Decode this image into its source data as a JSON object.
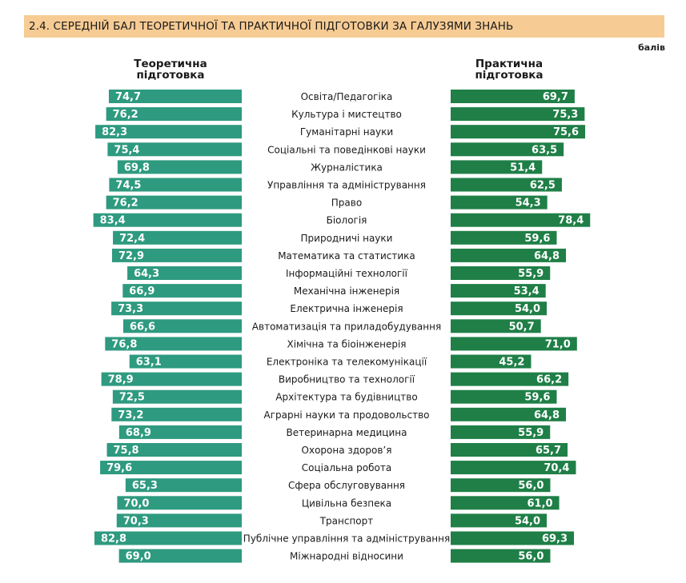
{
  "header": {
    "title": "2.4. СЕРЕДНІЙ БАЛ ТЕОРЕТИЧНОЇ ТА ПРАКТИЧНОЇ ПІДГОТОВКИ ЗА ГАЛУЗЯМИ ЗНАНЬ",
    "unit": "балів"
  },
  "columns": {
    "theory_line1": "Теоретична",
    "theory_line2": "підготовка",
    "practice_line1": "Практична",
    "practice_line2": "підготовка"
  },
  "colors": {
    "theory": "#2e9a7f",
    "practice": "#1f7f47",
    "title_bg": "#f7cc94"
  },
  "chart_data": {
    "type": "bar",
    "categories": [
      "Освіта/Педагогіка",
      "Культура і мистецтво",
      "Гуманітарні науки",
      "Соціальні та поведінкові науки",
      "Журналістика",
      "Управління та адміністрування",
      "Право",
      "Біологія",
      "Природничі науки",
      "Математика та статистика",
      "Інформаційні технології",
      "Механічна інженерія",
      "Електрична інженерія",
      "Автоматизація та приладобудування",
      "Хімічна та біоінженерія",
      "Електроніка та телекомунікації",
      "Виробництво та технології",
      "Архітектура та будівництво",
      "Аграрні науки та продовольство",
      "Ветеринарна медицина",
      "Охорона здоров’я",
      "Соціальна робота",
      "Сфера обслуговування",
      "Цивільна безпека",
      "Транспорт",
      "Публічне управління та адміністрування",
      "Міжнародні відносини"
    ],
    "series": [
      {
        "name": "Теоретична підготовка",
        "values": [
          74.7,
          76.2,
          82.3,
          75.4,
          69.8,
          74.5,
          76.2,
          83.4,
          72.4,
          72.9,
          64.3,
          66.9,
          73.3,
          66.6,
          76.8,
          63.1,
          78.9,
          72.5,
          73.2,
          68.9,
          75.8,
          79.6,
          65.3,
          70.0,
          70.3,
          82.8,
          69.0
        ],
        "labels": [
          "74,7",
          "76,2",
          "82,3",
          "75,4",
          "69,8",
          "74,5",
          "76,2",
          "83,4",
          "72,4",
          "72,9",
          "64,3",
          "66,9",
          "73,3",
          "66,6",
          "76,8",
          "63,1",
          "78,9",
          "72,5",
          "73,2",
          "68,9",
          "75,8",
          "79,6",
          "65,3",
          "70,0",
          "70,3",
          "82,8",
          "69,0"
        ]
      },
      {
        "name": "Практична підготовка",
        "values": [
          69.7,
          75.3,
          75.6,
          63.5,
          51.4,
          62.5,
          54.3,
          78.4,
          59.6,
          64.8,
          55.9,
          53.4,
          54.0,
          50.7,
          71.0,
          45.2,
          66.2,
          59.6,
          64.8,
          55.9,
          65.7,
          70.4,
          56.0,
          61.0,
          54.0,
          69.3,
          56.0
        ],
        "labels": [
          "69,7",
          "75,3",
          "75,6",
          "63,5",
          "51,4",
          "62,5",
          "54,3",
          "78,4",
          "59,6",
          "64,8",
          "55,9",
          "53,4",
          "54,0",
          "50,7",
          "71,0",
          "45,2",
          "66,2",
          "59,6",
          "64,8",
          "55,9",
          "65,7",
          "70,4",
          "56,0",
          "61,0",
          "54,0",
          "69,3",
          "56,0"
        ]
      }
    ],
    "orientation": "horizontal-butterfly",
    "grid": false
  }
}
